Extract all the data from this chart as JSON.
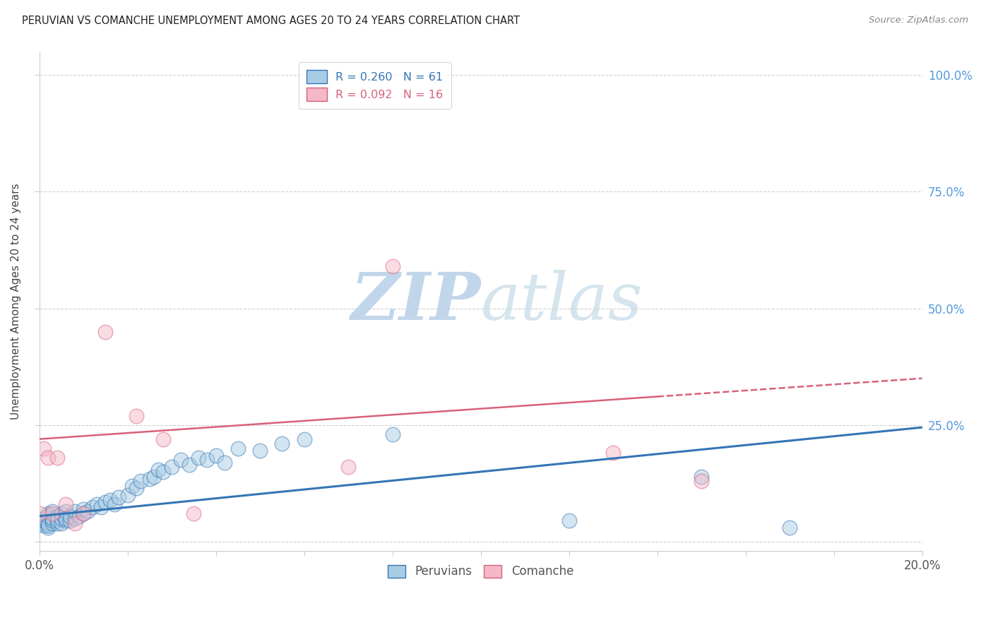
{
  "title": "PERUVIAN VS COMANCHE UNEMPLOYMENT AMONG AGES 20 TO 24 YEARS CORRELATION CHART",
  "source": "Source: ZipAtlas.com",
  "ylabel": "Unemployment Among Ages 20 to 24 years",
  "xlim": [
    0.0,
    0.2
  ],
  "ylim": [
    -0.02,
    1.05
  ],
  "blue_R": 0.26,
  "blue_N": 61,
  "pink_R": 0.092,
  "pink_N": 16,
  "blue_color": "#a8cce4",
  "pink_color": "#f4b8c8",
  "blue_line_color": "#3575b5",
  "pink_line_color": "#d9607a",
  "right_tick_color": "#5599dd",
  "watermark_zip_color": "#c5d8ee",
  "watermark_atlas_color": "#c5d8ee",
  "background_color": "#ffffff",
  "blue_points_x": [
    0.0,
    0.001,
    0.001,
    0.001,
    0.002,
    0.002,
    0.002,
    0.002,
    0.002,
    0.003,
    0.003,
    0.003,
    0.003,
    0.004,
    0.004,
    0.004,
    0.004,
    0.005,
    0.005,
    0.005,
    0.006,
    0.006,
    0.006,
    0.007,
    0.007,
    0.008,
    0.008,
    0.009,
    0.01,
    0.01,
    0.011,
    0.012,
    0.013,
    0.014,
    0.015,
    0.016,
    0.017,
    0.018,
    0.02,
    0.021,
    0.022,
    0.023,
    0.025,
    0.026,
    0.027,
    0.028,
    0.03,
    0.032,
    0.034,
    0.036,
    0.038,
    0.04,
    0.042,
    0.045,
    0.05,
    0.055,
    0.06,
    0.08,
    0.12,
    0.15,
    0.17
  ],
  "blue_points_y": [
    0.04,
    0.035,
    0.045,
    0.05,
    0.03,
    0.04,
    0.055,
    0.06,
    0.035,
    0.04,
    0.045,
    0.05,
    0.065,
    0.04,
    0.055,
    0.05,
    0.045,
    0.04,
    0.05,
    0.06,
    0.045,
    0.05,
    0.065,
    0.045,
    0.055,
    0.05,
    0.065,
    0.055,
    0.06,
    0.07,
    0.065,
    0.075,
    0.08,
    0.075,
    0.085,
    0.09,
    0.08,
    0.095,
    0.1,
    0.12,
    0.115,
    0.13,
    0.135,
    0.14,
    0.155,
    0.15,
    0.16,
    0.175,
    0.165,
    0.18,
    0.175,
    0.185,
    0.17,
    0.2,
    0.195,
    0.21,
    0.22,
    0.23,
    0.045,
    0.14,
    0.03
  ],
  "pink_points_x": [
    0.0,
    0.001,
    0.002,
    0.003,
    0.004,
    0.006,
    0.008,
    0.01,
    0.015,
    0.022,
    0.028,
    0.035,
    0.07,
    0.08,
    0.13,
    0.15
  ],
  "pink_points_y": [
    0.06,
    0.2,
    0.18,
    0.06,
    0.18,
    0.08,
    0.04,
    0.06,
    0.45,
    0.27,
    0.22,
    0.06,
    0.16,
    0.59,
    0.19,
    0.13
  ],
  "blue_trend_x0": 0.0,
  "blue_trend_y0": 0.055,
  "blue_trend_x1": 0.2,
  "blue_trend_y1": 0.245,
  "pink_trend_x0": 0.0,
  "pink_trend_y0": 0.22,
  "pink_trend_x1": 0.2,
  "pink_trend_y1": 0.35
}
